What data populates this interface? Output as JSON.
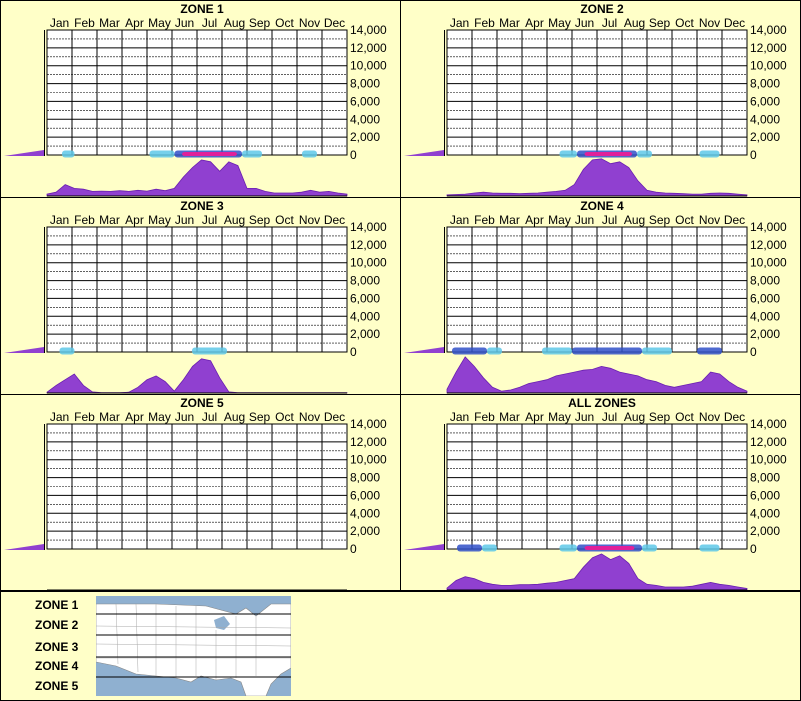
{
  "chart_data": [
    {
      "type": "area",
      "title": "ZONE 1",
      "categories": [
        "Jan",
        "Feb",
        "Mar",
        "Apr",
        "May",
        "Jun",
        "Jul",
        "Aug",
        "Sep",
        "Oct",
        "Nov",
        "Dec"
      ],
      "yticks": [
        "14,000",
        "12,000",
        "10,000",
        "8,000",
        "6,000",
        "4,000",
        "2,000",
        "0"
      ],
      "ylim": [
        0,
        14000
      ],
      "hotspot_bands": [
        [
          0.6,
          1.1,
          "#5ec8e8"
        ],
        [
          4.1,
          5.1,
          "#5ec8e8"
        ],
        [
          5.1,
          7.8,
          "#3050c8"
        ],
        [
          5.4,
          7.6,
          "#e0209a"
        ],
        [
          7.8,
          8.6,
          "#5ec8e8"
        ],
        [
          10.2,
          10.8,
          "#5ec8e8"
        ]
      ],
      "density": [
        0.05,
        0.1,
        0.3,
        0.2,
        0.18,
        0.12,
        0.13,
        0.12,
        0.14,
        0.12,
        0.15,
        0.13,
        0.18,
        0.14,
        0.2,
        0.5,
        0.75,
        0.95,
        0.9,
        0.65,
        0.9,
        0.8,
        0.2,
        0.2,
        0.12,
        0.08,
        0.08,
        0.08,
        0.1,
        0.15,
        0.1,
        0.12,
        0.08,
        0.05
      ]
    },
    {
      "type": "area",
      "title": "ZONE 2",
      "categories": [
        "Jan",
        "Feb",
        "Mar",
        "Apr",
        "May",
        "Jun",
        "Jul",
        "Aug",
        "Sep",
        "Oct",
        "Nov",
        "Dec"
      ],
      "yticks": [
        "14,000",
        "12,000",
        "10,000",
        "8,000",
        "6,000",
        "4,000",
        "2,000",
        "0"
      ],
      "ylim": [
        0,
        14000
      ],
      "hotspot_bands": [
        [
          4.5,
          5.2,
          "#5ec8e8"
        ],
        [
          5.2,
          7.6,
          "#3050c8"
        ],
        [
          5.5,
          7.4,
          "#e0209a"
        ],
        [
          7.6,
          8.2,
          "#5ec8e8"
        ],
        [
          10.1,
          10.9,
          "#5ec8e8"
        ]
      ],
      "density": [
        0.03,
        0.04,
        0.05,
        0.08,
        0.1,
        0.08,
        0.07,
        0.07,
        0.06,
        0.07,
        0.08,
        0.1,
        0.12,
        0.15,
        0.3,
        0.7,
        0.95,
        0.98,
        0.85,
        0.9,
        0.75,
        0.4,
        0.15,
        0.1,
        0.08,
        0.07,
        0.06,
        0.05,
        0.05,
        0.07,
        0.08,
        0.07,
        0.05,
        0.03
      ]
    },
    {
      "type": "area",
      "title": "ZONE 3",
      "categories": [
        "Jan",
        "Feb",
        "Mar",
        "Apr",
        "May",
        "Jun",
        "Jul",
        "Aug",
        "Sep",
        "Oct",
        "Nov",
        "Dec"
      ],
      "yticks": [
        "14,000",
        "12,000",
        "10,000",
        "8,000",
        "6,000",
        "4,000",
        "2,000",
        "0"
      ],
      "ylim": [
        0,
        14000
      ],
      "hotspot_bands": [
        [
          0.5,
          1.1,
          "#5ec8e8"
        ],
        [
          5.8,
          7.2,
          "#5ec8e8"
        ]
      ],
      "density": [
        0.02,
        0.2,
        0.35,
        0.5,
        0.2,
        0.03,
        0.01,
        0.01,
        0.01,
        0.02,
        0.15,
        0.35,
        0.45,
        0.3,
        0.05,
        0.35,
        0.7,
        0.9,
        0.85,
        0.4,
        0.03,
        0.01,
        0.01,
        0.01,
        0.01,
        0.01,
        0.01,
        0.01,
        0.01,
        0.01,
        0.01,
        0.01,
        0.01,
        0.01
      ]
    },
    {
      "type": "area",
      "title": "ZONE 4",
      "categories": [
        "Jan",
        "Feb",
        "Mar",
        "Apr",
        "May",
        "Jun",
        "Jul",
        "Aug",
        "Sep",
        "Oct",
        "Nov",
        "Dec"
      ],
      "yticks": [
        "14,000",
        "12,000",
        "10,000",
        "8,000",
        "6,000",
        "4,000",
        "2,000",
        "0"
      ],
      "ylim": [
        0,
        14000
      ],
      "hotspot_bands": [
        [
          0.2,
          1.6,
          "#3050c8"
        ],
        [
          1.6,
          2.2,
          "#5ec8e8"
        ],
        [
          3.8,
          5.0,
          "#5ec8e8"
        ],
        [
          5.0,
          7.8,
          "#3050c8"
        ],
        [
          7.8,
          9.0,
          "#5ec8e8"
        ],
        [
          10.0,
          11.0,
          "#3050c8"
        ]
      ],
      "density": [
        0.1,
        0.55,
        0.95,
        0.7,
        0.4,
        0.15,
        0.05,
        0.08,
        0.15,
        0.25,
        0.3,
        0.35,
        0.45,
        0.5,
        0.55,
        0.6,
        0.62,
        0.7,
        0.65,
        0.55,
        0.5,
        0.45,
        0.35,
        0.3,
        0.2,
        0.15,
        0.2,
        0.25,
        0.3,
        0.55,
        0.5,
        0.3,
        0.15,
        0.05
      ]
    },
    {
      "type": "area",
      "title": "ZONE 5",
      "categories": [
        "Jan",
        "Feb",
        "Mar",
        "Apr",
        "May",
        "Jun",
        "Jul",
        "Aug",
        "Sep",
        "Oct",
        "Nov",
        "Dec"
      ],
      "yticks": [
        "14,000",
        "12,000",
        "10,000",
        "8,000",
        "6,000",
        "4,000",
        "2,000",
        "0"
      ],
      "ylim": [
        0,
        14000
      ],
      "hotspot_bands": [],
      "density": []
    },
    {
      "type": "area",
      "title": "ALL ZONES",
      "categories": [
        "Jan",
        "Feb",
        "Mar",
        "Apr",
        "May",
        "Jun",
        "Jul",
        "Aug",
        "Sep",
        "Oct",
        "Nov",
        "Dec"
      ],
      "yticks": [
        "14,000",
        "12,000",
        "10,000",
        "8,000",
        "6,000",
        "4,000",
        "2,000",
        "0"
      ],
      "ylim": [
        0,
        14000
      ],
      "hotspot_bands": [
        [
          0.4,
          1.4,
          "#3050c8"
        ],
        [
          1.4,
          2.0,
          "#5ec8e8"
        ],
        [
          4.5,
          5.2,
          "#5ec8e8"
        ],
        [
          5.2,
          7.8,
          "#3050c8"
        ],
        [
          5.5,
          7.5,
          "#e0209a"
        ],
        [
          7.8,
          8.4,
          "#5ec8e8"
        ],
        [
          10.1,
          10.9,
          "#5ec8e8"
        ]
      ],
      "density": [
        0.05,
        0.25,
        0.35,
        0.3,
        0.2,
        0.15,
        0.12,
        0.12,
        0.14,
        0.14,
        0.15,
        0.18,
        0.2,
        0.25,
        0.3,
        0.6,
        0.85,
        0.95,
        0.8,
        0.9,
        0.7,
        0.3,
        0.15,
        0.12,
        0.08,
        0.08,
        0.08,
        0.1,
        0.15,
        0.2,
        0.15,
        0.12,
        0.08,
        0.04
      ]
    }
  ],
  "legend": {
    "zones": [
      "ZONE 1",
      "ZONE 2",
      "ZONE 3",
      "ZONE 4",
      "ZONE 5"
    ]
  },
  "colors": {
    "background": "#ffffc8",
    "area_fill": "#9040d0",
    "area_stroke": "#6a1fb0",
    "map_water": "#8fb0d0",
    "map_land": "#ffffff"
  }
}
